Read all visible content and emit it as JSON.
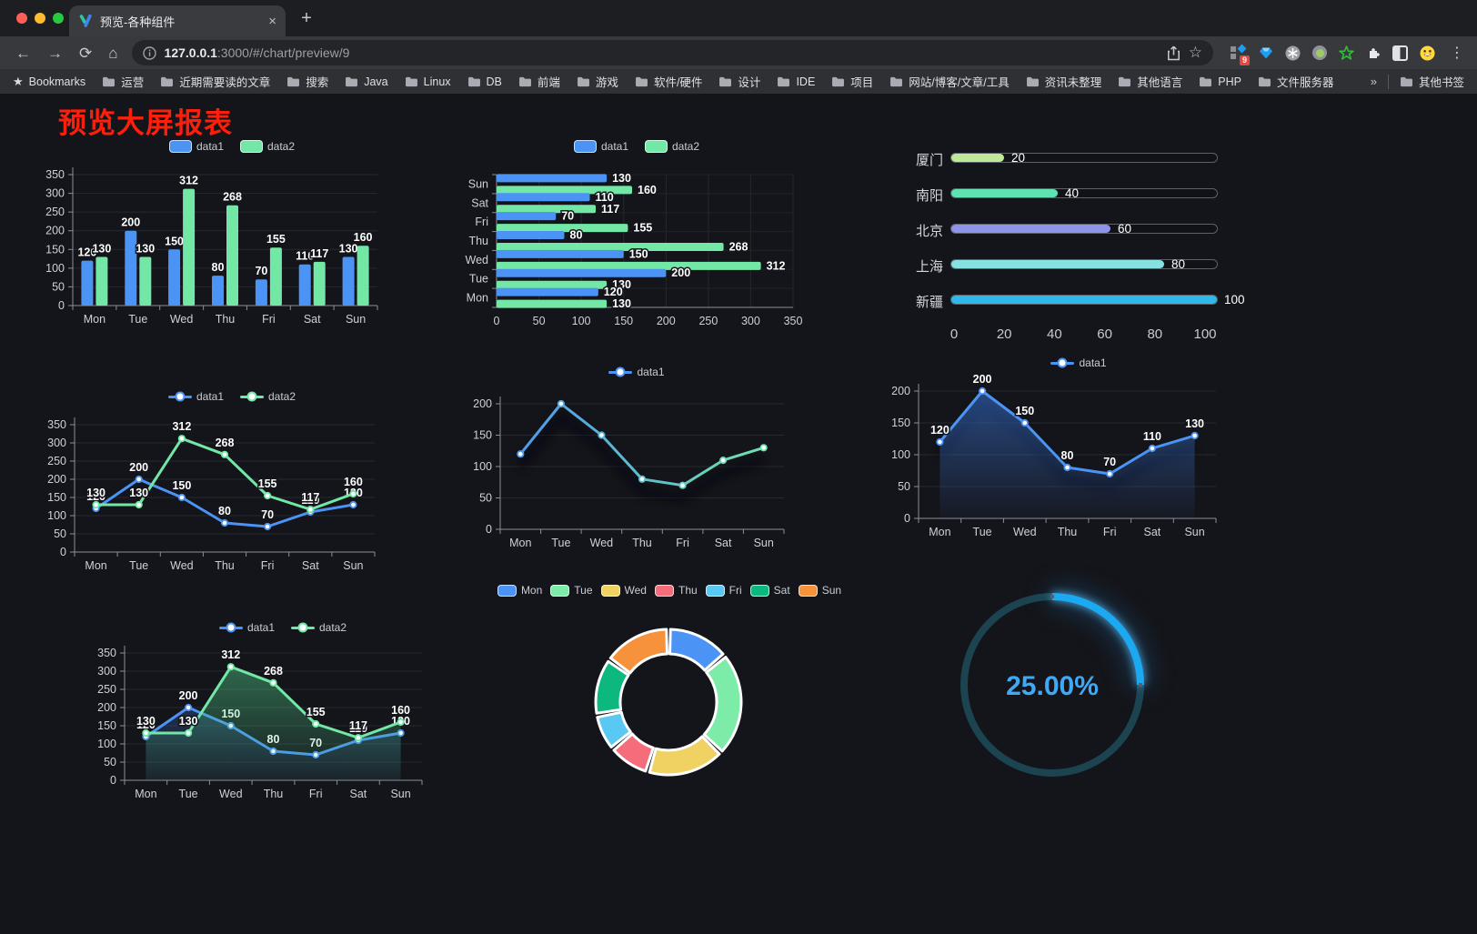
{
  "browser": {
    "tab": {
      "title": "预览-各种组件",
      "close": "×",
      "new_tab": "+"
    },
    "address": {
      "host": "127.0.0.1",
      "rest": ":3000/#/chart/preview/9"
    },
    "icons": {
      "back": "←",
      "forward": "→",
      "reload": "⟳",
      "home": "⌂",
      "star": "☆",
      "menu": "⋮",
      "bookmarks_star": "★"
    },
    "extensions_badge": "9",
    "bookmarks": {
      "label": "Bookmarks",
      "items": [
        "运营",
        "近期需要读的文章",
        "搜索",
        "Java",
        "Linux",
        "DB",
        "前端",
        "游戏",
        "软件/硬件",
        "设计",
        "IDE",
        "项目",
        "网站/博客/文章/工具",
        "资讯未整理",
        "其他语言",
        "PHP",
        "文件服务器"
      ],
      "overflow": "»",
      "other": "其他书签"
    }
  },
  "page": {
    "title": "预览大屏报表",
    "title_color": "#fb1f0c",
    "background": "#14151a"
  },
  "chart_data": [
    {
      "id": "grouped-bar",
      "type": "bar",
      "title": "",
      "categories": [
        "Mon",
        "Tue",
        "Wed",
        "Thu",
        "Fri",
        "Sat",
        "Sun"
      ],
      "series": [
        {
          "name": "data1",
          "color": "#4b94f5",
          "values": [
            120,
            200,
            150,
            80,
            70,
            110,
            130
          ]
        },
        {
          "name": "data2",
          "color": "#73e8a6",
          "values": [
            130,
            130,
            312,
            268,
            155,
            117,
            160
          ]
        }
      ],
      "ylim": [
        0,
        350
      ],
      "ytick_step": 50,
      "value_labels": true,
      "legend_position": "top",
      "grid": true
    },
    {
      "id": "grouped-hbar",
      "type": "hbar",
      "title": "",
      "categories": [
        "Mon",
        "Tue",
        "Wed",
        "Thu",
        "Fri",
        "Sat",
        "Sun"
      ],
      "display_order_top_to_bottom": [
        "Sun",
        "Sat",
        "Fri",
        "Thu",
        "Wed",
        "Tue",
        "Mon"
      ],
      "series": [
        {
          "name": "data1",
          "color": "#4b94f5",
          "values": [
            120,
            200,
            150,
            80,
            70,
            110,
            130
          ]
        },
        {
          "name": "data2",
          "color": "#73e8a6",
          "values": [
            130,
            130,
            312,
            268,
            155,
            117,
            160
          ]
        }
      ],
      "xlim": [
        0,
        350
      ],
      "xtick_step": 50,
      "value_labels": true,
      "legend_position": "top",
      "grid": true
    },
    {
      "id": "city-progress",
      "type": "progress",
      "items": [
        {
          "label": "厦门",
          "value": 20,
          "color": "#bfe89b"
        },
        {
          "label": "南阳",
          "value": 40,
          "color": "#5de4b1"
        },
        {
          "label": "北京",
          "value": 60,
          "color": "#8e94e8"
        },
        {
          "label": "上海",
          "value": 80,
          "color": "#86e2e0"
        },
        {
          "label": "新疆",
          "value": 100,
          "color": "#2fb8ea"
        }
      ],
      "xlim": [
        0,
        100
      ],
      "xticks": [
        0,
        20,
        40,
        60,
        80,
        100
      ]
    },
    {
      "id": "line-two",
      "type": "line",
      "categories": [
        "Mon",
        "Tue",
        "Wed",
        "Thu",
        "Fri",
        "Sat",
        "Sun"
      ],
      "series": [
        {
          "name": "data1",
          "color": "#4b94f5",
          "values": [
            120,
            200,
            150,
            80,
            70,
            110,
            130
          ]
        },
        {
          "name": "data2",
          "color": "#73e8a6",
          "values": [
            130,
            130,
            312,
            268,
            155,
            117,
            160
          ]
        }
      ],
      "ylim": [
        0,
        350
      ],
      "ytick_step": 50,
      "value_labels": true,
      "legend_position": "top",
      "grid": true
    },
    {
      "id": "line-gradient",
      "type": "line",
      "categories": [
        "Mon",
        "Tue",
        "Wed",
        "Thu",
        "Fri",
        "Sat",
        "Sun"
      ],
      "series": [
        {
          "name": "data1",
          "gradient": [
            "#4b94f5",
            "#73e8a6"
          ],
          "values": [
            120,
            200,
            150,
            80,
            70,
            110,
            130
          ]
        }
      ],
      "ylim": [
        0,
        200
      ],
      "ytick_step": 50,
      "value_labels": false,
      "shadow": true,
      "legend_position": "top",
      "grid": true
    },
    {
      "id": "line-area",
      "type": "line",
      "categories": [
        "Mon",
        "Tue",
        "Wed",
        "Thu",
        "Fri",
        "Sat",
        "Sun"
      ],
      "series": [
        {
          "name": "data1",
          "color": "#4b94f5",
          "values": [
            120,
            200,
            150,
            80,
            70,
            110,
            130
          ],
          "area": true,
          "area_color": "#3b76d8",
          "area_opacity": [
            0.55,
            0.04
          ]
        }
      ],
      "ylim": [
        0,
        200
      ],
      "ytick_step": 50,
      "value_labels": true,
      "shadow": true,
      "legend_position": "top",
      "grid": true
    },
    {
      "id": "line-area-two",
      "type": "line",
      "categories": [
        "Mon",
        "Tue",
        "Wed",
        "Thu",
        "Fri",
        "Sat",
        "Sun"
      ],
      "series": [
        {
          "name": "data1",
          "color": "#4b94f5",
          "values": [
            120,
            200,
            150,
            80,
            70,
            110,
            130
          ],
          "area": true,
          "area_color": "#3b76d8",
          "area_opacity": [
            0.45,
            0.05
          ]
        },
        {
          "name": "data2",
          "color": "#73e8a6",
          "values": [
            130,
            130,
            312,
            268,
            155,
            117,
            160
          ],
          "area": true,
          "area_color": "#4fc98a",
          "area_opacity": [
            0.5,
            0.06
          ]
        }
      ],
      "ylim": [
        0,
        350
      ],
      "ytick_step": 50,
      "value_labels": true,
      "legend_position": "top",
      "grid": true
    },
    {
      "id": "weekday-donut",
      "type": "pie",
      "categories": [
        "Mon",
        "Tue",
        "Wed",
        "Thu",
        "Fri",
        "Sat",
        "Sun"
      ],
      "values": [
        120,
        200,
        150,
        80,
        70,
        110,
        130
      ],
      "colors": [
        "#4b94f5",
        "#7deca9",
        "#f0d263",
        "#f56c7b",
        "#59c8f2",
        "#0cb87e",
        "#f6923c"
      ],
      "inner_radius_ratio": 0.66,
      "legend_position": "top"
    },
    {
      "id": "gauge",
      "type": "gauge",
      "value": 25,
      "label": "25.00%",
      "progress_color": "#1ba9f2",
      "track_color": "#1c4350",
      "text_color": "#3fa9f5"
    }
  ]
}
